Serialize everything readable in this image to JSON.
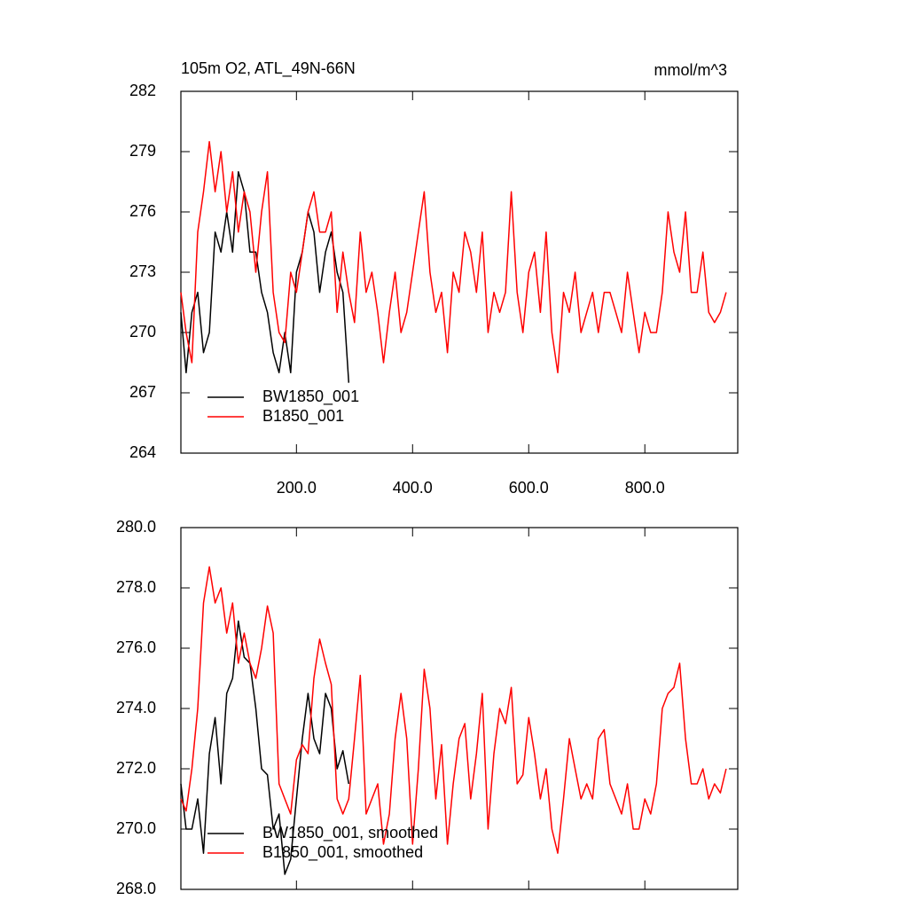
{
  "chart_data": [
    {
      "type": "line",
      "title": "105m O2, ATL_49N-66N",
      "units": "mmol/m^3",
      "xlim": [
        1,
        960
      ],
      "xticks": [
        {
          "value": 200,
          "label": "200.0"
        },
        {
          "value": 400,
          "label": "400.0"
        },
        {
          "value": 600,
          "label": "600.0"
        },
        {
          "value": 800,
          "label": "800.0"
        }
      ],
      "ylim": [
        264,
        282
      ],
      "yticks": [
        264,
        267,
        270,
        273,
        276,
        279,
        282
      ],
      "legend": "lower left",
      "series": [
        {
          "name": "BW1850_001",
          "color": "#000000",
          "x": [
            1,
            10,
            20,
            30,
            40,
            50,
            60,
            70,
            80,
            90,
            100,
            110,
            120,
            130,
            140,
            150,
            160,
            170,
            180,
            190,
            200,
            210,
            220,
            230,
            240,
            250,
            260,
            270,
            280,
            290
          ],
          "values": [
            271,
            268,
            271,
            272,
            269,
            270,
            275,
            274,
            276,
            274,
            278,
            277,
            274,
            274,
            272,
            271,
            269,
            268,
            270,
            268,
            273,
            274,
            276,
            275,
            272,
            274,
            275,
            273,
            272,
            267.5
          ]
        },
        {
          "name": "B1850_001",
          "color": "#ff0000",
          "x": [
            1,
            10,
            20,
            30,
            40,
            50,
            60,
            70,
            80,
            90,
            100,
            110,
            120,
            130,
            140,
            150,
            160,
            170,
            180,
            190,
            200,
            210,
            220,
            230,
            240,
            250,
            260,
            270,
            280,
            290,
            300,
            310,
            320,
            330,
            340,
            350,
            360,
            370,
            380,
            390,
            400,
            410,
            420,
            430,
            440,
            450,
            460,
            470,
            480,
            490,
            500,
            510,
            520,
            530,
            540,
            550,
            560,
            570,
            580,
            590,
            600,
            610,
            620,
            630,
            640,
            650,
            660,
            670,
            680,
            690,
            700,
            710,
            720,
            730,
            740,
            750,
            760,
            770,
            780,
            790,
            800,
            810,
            820,
            830,
            840,
            850,
            860,
            870,
            880,
            890,
            900,
            910,
            920,
            930,
            940
          ],
          "values": [
            272,
            270,
            268.5,
            275,
            277,
            279.5,
            277,
            279,
            276,
            278,
            275,
            277,
            276,
            273,
            276,
            278,
            272,
            270,
            269.5,
            273,
            272,
            274,
            276,
            277,
            275,
            275,
            276,
            271,
            274,
            272,
            270.5,
            275,
            272,
            273,
            271,
            268.5,
            271,
            273,
            270,
            271,
            273,
            275,
            277,
            273,
            271,
            272,
            269,
            273,
            272,
            275,
            274,
            272,
            275,
            270,
            272,
            271,
            272,
            277,
            272,
            270,
            273,
            274,
            271,
            275,
            270,
            268,
            272,
            271,
            273,
            270,
            271,
            272,
            270,
            272,
            272,
            271,
            270,
            273,
            271,
            269,
            271,
            270,
            270,
            272,
            276,
            274,
            273,
            276,
            272,
            272,
            274,
            271,
            270.5,
            271,
            272
          ]
        }
      ]
    },
    {
      "type": "line",
      "xlim": [
        1,
        960
      ],
      "ylim": [
        268,
        280
      ],
      "yticks": [
        {
          "value": 268,
          "label": "268.0"
        },
        {
          "value": 270,
          "label": "270.0"
        },
        {
          "value": 272,
          "label": "272.0"
        },
        {
          "value": 274,
          "label": "274.0"
        },
        {
          "value": 276,
          "label": "276.0"
        },
        {
          "value": 278,
          "label": "278.0"
        },
        {
          "value": 280,
          "label": "280.0"
        }
      ],
      "legend": "lower left",
      "series": [
        {
          "name": "BW1850_001, smoothed",
          "color": "#000000",
          "x": [
            1,
            10,
            20,
            30,
            40,
            50,
            60,
            70,
            80,
            90,
            100,
            110,
            120,
            130,
            140,
            150,
            160,
            170,
            180,
            190,
            200,
            210,
            220,
            230,
            240,
            250,
            260,
            270,
            280,
            290
          ],
          "values": [
            271.5,
            270,
            270,
            271,
            269.2,
            272.5,
            273.7,
            271.5,
            274.5,
            275,
            276.9,
            275.7,
            275.5,
            274,
            272,
            271.8,
            270,
            270.5,
            268.5,
            269,
            271,
            273,
            274.5,
            273,
            272.5,
            274.5,
            274,
            272,
            272.6,
            271.5
          ]
        },
        {
          "name": "B1850_001, smoothed",
          "color": "#ff0000",
          "x": [
            1,
            10,
            20,
            30,
            40,
            50,
            60,
            70,
            80,
            90,
            100,
            110,
            120,
            130,
            140,
            150,
            160,
            170,
            180,
            190,
            200,
            210,
            220,
            230,
            240,
            250,
            260,
            270,
            280,
            290,
            300,
            310,
            320,
            330,
            340,
            350,
            360,
            370,
            380,
            390,
            400,
            410,
            420,
            430,
            440,
            450,
            460,
            470,
            480,
            490,
            500,
            510,
            520,
            530,
            540,
            550,
            560,
            570,
            580,
            590,
            600,
            610,
            620,
            630,
            640,
            650,
            660,
            670,
            680,
            690,
            700,
            710,
            720,
            730,
            740,
            750,
            760,
            770,
            780,
            790,
            800,
            810,
            820,
            830,
            840,
            850,
            860,
            870,
            880,
            890,
            900,
            910,
            920,
            930,
            940
          ],
          "values": [
            271,
            270.6,
            272,
            274,
            277.5,
            278.7,
            277.5,
            278,
            276.5,
            277.5,
            275.5,
            276.5,
            275.5,
            275,
            276,
            277.4,
            276.5,
            271.5,
            271,
            270.5,
            272.3,
            272.8,
            272.5,
            275,
            276.3,
            275.5,
            274.8,
            271,
            270.5,
            271,
            273,
            275.1,
            270.5,
            271,
            271.5,
            269.5,
            270.5,
            273,
            274.5,
            273,
            269.5,
            272,
            275.3,
            274,
            271,
            272.8,
            269.5,
            271.5,
            273,
            273.5,
            271,
            272.5,
            274.5,
            270,
            272.5,
            274,
            273.5,
            274.7,
            271.5,
            271.8,
            273.7,
            272.5,
            271,
            272,
            270,
            269.2,
            271,
            273,
            272,
            271,
            271.5,
            271,
            273,
            273.3,
            271.5,
            271,
            270.5,
            271.5,
            270,
            270,
            271,
            270.5,
            271.5,
            274,
            274.5,
            274.7,
            275.5,
            273,
            271.5,
            271.5,
            272,
            271,
            271.5,
            271.2,
            272
          ]
        }
      ]
    }
  ]
}
